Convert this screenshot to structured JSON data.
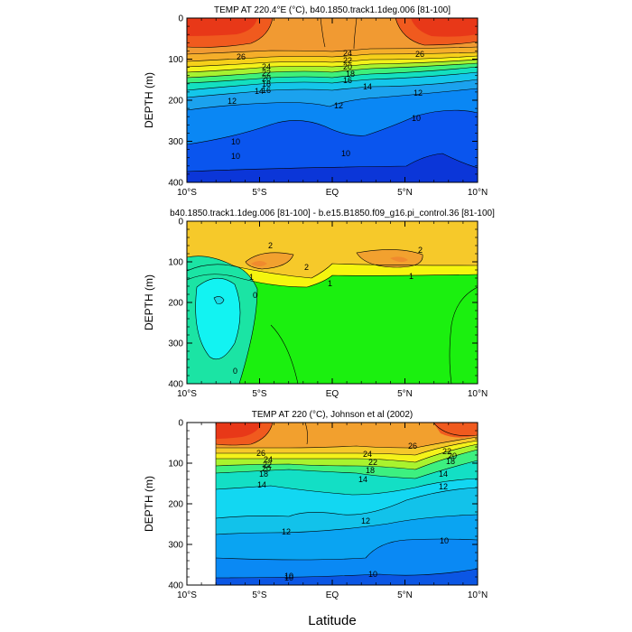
{
  "chart_data": [
    {
      "type": "contour",
      "title": "TEMP AT 220.4°E (°C), b40.1850.track1.1deg.006 [81-100]",
      "ylabel": "DEPTH (m)",
      "xlim": [
        -10,
        10
      ],
      "ylim": [
        400,
        0
      ],
      "x_ticks": [
        "10°S",
        "5°S",
        "EQ",
        "5°N",
        "10°N"
      ],
      "y_ticks": [
        "0",
        "100",
        "200",
        "300",
        "400"
      ],
      "contour_labels": [
        "26",
        "24",
        "22",
        "20",
        "18",
        "16",
        "14",
        "12",
        "10",
        "26",
        "24",
        "22",
        "20",
        "18",
        "16",
        "14",
        "12",
        "12",
        "10",
        "10",
        "10"
      ]
    },
    {
      "type": "contour",
      "title": "b40.1850.track1.1deg.006 [81-100] - b.e15.B1850.f09_g16.pi_control.36 [81-100]",
      "ylabel": "DEPTH (m)",
      "xlim": [
        -10,
        10
      ],
      "ylim": [
        400,
        0
      ],
      "x_ticks": [
        "10°S",
        "5°S",
        "EQ",
        "5°N",
        "10°N"
      ],
      "y_ticks": [
        "0",
        "100",
        "200",
        "300",
        "400"
      ],
      "contour_labels": [
        "2",
        "2",
        "2",
        "1",
        "1",
        "1",
        "0",
        "0"
      ]
    },
    {
      "type": "contour",
      "title": "TEMP AT 220 (°C), Johnson et al (2002)",
      "ylabel": "DEPTH (m)",
      "xlabel": "Latitude",
      "xlim": [
        -10,
        10
      ],
      "ylim": [
        400,
        0
      ],
      "x_ticks": [
        "10°S",
        "5°S",
        "EQ",
        "5°N",
        "10°N"
      ],
      "y_ticks": [
        "0",
        "100",
        "200",
        "300",
        "400"
      ],
      "contour_labels": [
        "26",
        "24",
        "22",
        "20",
        "18",
        "14",
        "14",
        "12",
        "12",
        "10",
        "10",
        "24",
        "22",
        "18",
        "26",
        "22",
        "20",
        "18",
        "14",
        "12",
        "10",
        "10"
      ]
    }
  ]
}
